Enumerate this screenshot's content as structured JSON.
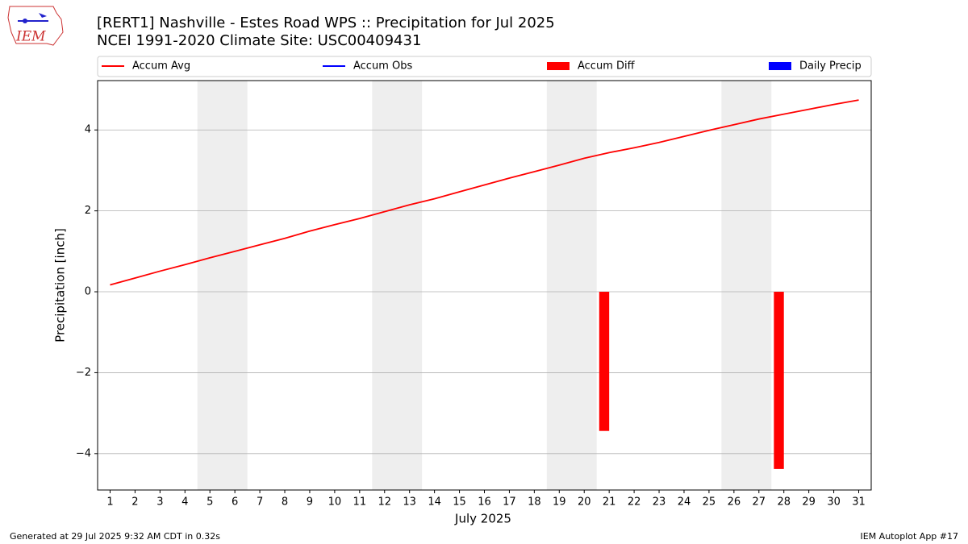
{
  "chart_data": {
    "type": "line",
    "title": "[RERT1] Nashville - Estes Road WPS :: Precipitation for Jul 2025",
    "subtitle": "NCEI 1991-2020 Climate Site: USC00409431",
    "xlabel": "July 2025",
    "ylabel": "Precipitation [inch]",
    "footer_left": "Generated at 29 Jul 2025 9:32 AM CDT in 0.32s",
    "footer_right": "IEM Autoplot App #17",
    "logo_text": "IEM",
    "x": [
      1,
      2,
      3,
      4,
      5,
      6,
      7,
      8,
      9,
      10,
      11,
      12,
      13,
      14,
      15,
      16,
      17,
      18,
      19,
      20,
      21,
      22,
      23,
      24,
      25,
      26,
      27,
      28,
      29,
      30,
      31
    ],
    "xlim": [
      0.5,
      31.5
    ],
    "xticks": [
      1,
      2,
      3,
      4,
      5,
      6,
      7,
      8,
      9,
      10,
      11,
      12,
      13,
      14,
      15,
      16,
      17,
      18,
      19,
      20,
      21,
      22,
      23,
      24,
      25,
      26,
      27,
      28,
      29,
      30,
      31
    ],
    "ylim": [
      -4.9,
      5.22
    ],
    "yticks": [
      {
        "value": -4,
        "label": "−4"
      },
      {
        "value": -2,
        "label": "−2"
      },
      0,
      2,
      4
    ],
    "grid": true,
    "weekend_spans": [
      [
        4.5,
        6.5
      ],
      [
        11.5,
        13.5
      ],
      [
        18.5,
        20.5
      ],
      [
        25.5,
        27.5
      ]
    ],
    "series": [
      {
        "name": "Accum Avg",
        "kind": "line",
        "color": "#ff0000",
        "values": [
          0.17,
          0.34,
          0.51,
          0.67,
          0.84,
          1.0,
          1.16,
          1.32,
          1.5,
          1.66,
          1.81,
          1.98,
          2.15,
          2.3,
          2.47,
          2.64,
          2.81,
          2.97,
          3.13,
          3.3,
          3.44,
          3.56,
          3.69,
          3.84,
          3.99,
          4.13,
          4.27,
          4.39,
          4.51,
          4.63,
          4.74
        ]
      },
      {
        "name": "Accum Obs",
        "kind": "line",
        "color": "#0000ff",
        "values": [
          null,
          null,
          null,
          null,
          null,
          null,
          null,
          null,
          null,
          null,
          null,
          null,
          null,
          null,
          null,
          null,
          null,
          null,
          null,
          null,
          null,
          null,
          null,
          null,
          null,
          null,
          null,
          null,
          null,
          null,
          null
        ]
      },
      {
        "name": "Accum Diff",
        "kind": "bar",
        "color": "#ff0000",
        "values": [
          null,
          null,
          null,
          null,
          null,
          null,
          null,
          null,
          null,
          null,
          null,
          null,
          null,
          null,
          null,
          null,
          null,
          null,
          null,
          null,
          -3.44,
          null,
          null,
          null,
          null,
          null,
          null,
          -4.38,
          null,
          null,
          null
        ]
      },
      {
        "name": "Daily Precip",
        "kind": "bar",
        "color": "#0000ff",
        "values": [
          null,
          null,
          null,
          null,
          null,
          null,
          null,
          null,
          null,
          null,
          null,
          null,
          null,
          null,
          null,
          null,
          null,
          null,
          null,
          null,
          null,
          null,
          null,
          null,
          null,
          null,
          null,
          null,
          null,
          null,
          null
        ]
      }
    ]
  }
}
